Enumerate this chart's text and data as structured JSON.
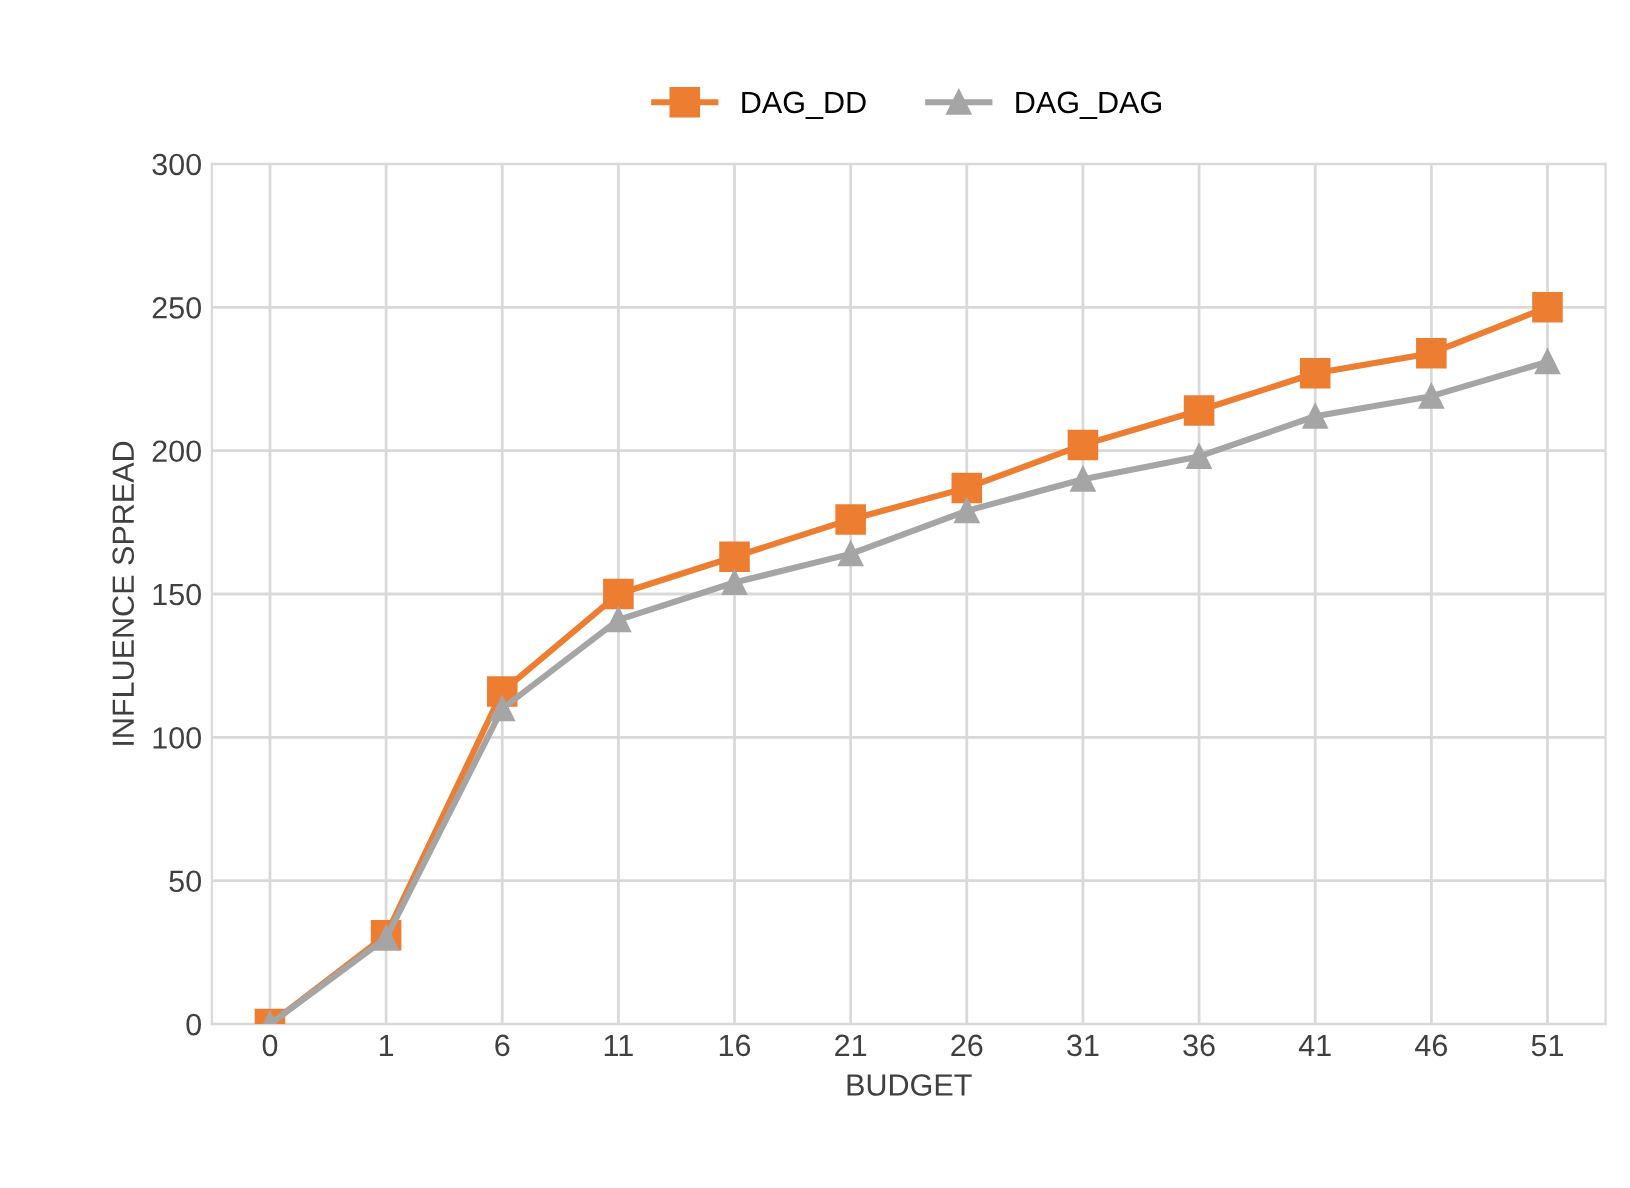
{
  "chart_data": {
    "type": "line",
    "xlabel": "BUDGET",
    "ylabel": "INFLUENCE SPREAD",
    "categories": [
      "0",
      "1",
      "6",
      "11",
      "16",
      "21",
      "26",
      "31",
      "36",
      "41",
      "46",
      "51"
    ],
    "series": [
      {
        "name": "DAG_DD",
        "color": "#ed7d31",
        "marker": "square",
        "values": [
          0,
          31,
          116,
          150,
          163,
          176,
          187,
          202,
          214,
          227,
          234,
          250
        ]
      },
      {
        "name": "DAG_DAG",
        "color": "#a5a5a5",
        "marker": "triangle",
        "values": [
          0,
          30,
          110,
          141,
          154,
          164,
          179,
          190,
          198,
          212,
          219,
          231
        ]
      }
    ],
    "ylim": [
      0,
      300
    ],
    "yticks": [
      0,
      50,
      100,
      150,
      200,
      250,
      300
    ],
    "grid": true,
    "legend": "top",
    "line_style": "solid"
  }
}
